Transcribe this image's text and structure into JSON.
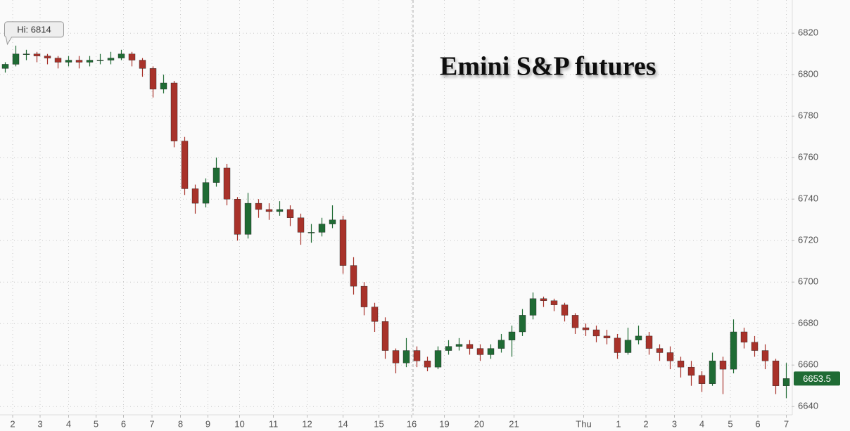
{
  "chart_data": {
    "type": "candlestick",
    "title": "Emini S&P futures",
    "annotation": "Hi: 6814",
    "last_price": 6653.5,
    "up_color": "#1f6b34",
    "down_color": "#a8322a",
    "grid": true,
    "x": [
      0,
      1,
      2,
      3,
      4,
      5,
      6,
      7,
      8,
      9,
      10,
      11,
      12,
      13,
      14,
      15,
      16,
      17,
      18,
      19,
      20,
      21,
      22,
      23,
      24,
      25,
      26,
      27,
      28,
      29,
      30,
      31,
      32,
      33,
      34,
      35,
      36,
      37,
      38,
      39,
      40,
      41,
      42,
      43,
      44,
      45,
      46,
      47,
      48,
      49,
      50,
      51,
      52,
      53,
      54,
      55,
      56,
      57,
      58,
      59,
      60,
      61,
      62,
      63,
      64,
      65,
      66,
      67,
      68,
      69,
      70,
      71,
      72,
      73,
      74
    ],
    "open": [
      6803,
      6805,
      6810,
      6810,
      6809,
      6808,
      6806,
      6807,
      6806,
      6807,
      6807,
      6808,
      6810,
      6807,
      6803,
      6793,
      6796,
      6768,
      6745,
      6738,
      6748,
      6755,
      6740,
      6723,
      6738,
      6735,
      6734,
      6735,
      6731,
      6724,
      6724,
      6728,
      6730,
      6708,
      6698,
      6688,
      6681,
      6667,
      6661,
      6667,
      6662,
      6659,
      6667,
      6669,
      6670,
      6668,
      6665,
      6668,
      6672,
      6676,
      6684,
      6692,
      6691,
      6689,
      6684,
      6678,
      6677,
      6674,
      6673,
      6666,
      6672,
      6674,
      6668,
      6666,
      6662,
      6659,
      6655,
      6651,
      6662,
      6658,
      6676,
      6671,
      6667,
      6662,
      6650
    ],
    "high": [
      6806,
      6814,
      6812,
      6811,
      6810,
      6809,
      6809,
      6809,
      6809,
      6810,
      6811,
      6812,
      6811,
      6808,
      6804,
      6800,
      6797,
      6770,
      6747,
      6750,
      6760,
      6757,
      6741,
      6743,
      6740,
      6738,
      6739,
      6737,
      6733,
      6728,
      6731,
      6737,
      6732,
      6712,
      6700,
      6690,
      6683,
      6668,
      6673,
      6669,
      6664,
      6669,
      6672,
      6673,
      6672,
      6670,
      6670,
      6675,
      6679,
      6687,
      6695,
      6693,
      6692,
      6690,
      6685,
      6680,
      6679,
      6677,
      6675,
      6678,
      6679,
      6676,
      6670,
      6669,
      6664,
      6662,
      6657,
      6666,
      6664,
      6682,
      6678,
      6674,
      6670,
      6663,
      6661
    ],
    "low": [
      6801,
      6804,
      6807,
      6806,
      6805,
      6803,
      6804,
      6803,
      6804,
      6805,
      6805,
      6807,
      6804,
      6799,
      6789,
      6791,
      6765,
      6742,
      6733,
      6736,
      6746,
      6737,
      6720,
      6721,
      6731,
      6730,
      6732,
      6727,
      6718,
      6719,
      6722,
      6726,
      6704,
      6694,
      6684,
      6676,
      6663,
      6656,
      6659,
      6659,
      6657,
      6658,
      6665,
      6667,
      6665,
      6662,
      6663,
      6666,
      6664,
      6674,
      6682,
      6688,
      6686,
      6681,
      6675,
      6674,
      6671,
      6670,
      6663,
      6665,
      6670,
      6665,
      6662,
      6658,
      6654,
      6650,
      6647,
      6650,
      6646,
      6656,
      6668,
      6664,
      6658,
      6646,
      6644
    ],
    "close": [
      6805,
      6810,
      6810,
      6809,
      6808,
      6806,
      6807,
      6806,
      6807,
      6807,
      6808,
      6810,
      6807,
      6803,
      6793,
      6796,
      6768,
      6745,
      6738,
      6748,
      6755,
      6740,
      6723,
      6738,
      6735,
      6734,
      6735,
      6731,
      6724,
      6724,
      6728,
      6730,
      6708,
      6698,
      6688,
      6681,
      6667,
      6661,
      6667,
      6662,
      6659,
      6667,
      6669,
      6670,
      6668,
      6665,
      6668,
      6672,
      6676,
      6684,
      6692,
      6691,
      6689,
      6684,
      6678,
      6677,
      6674,
      6673,
      6666,
      6672,
      6674,
      6668,
      6666,
      6662,
      6659,
      6655,
      6651,
      6662,
      6658,
      6676,
      6671,
      6667,
      6662,
      6650,
      6653.5
    ],
    "xlim": [
      -0.5,
      74.5
    ],
    "xticks": [
      {
        "value": 0.7,
        "label": "2"
      },
      {
        "value": 3.3,
        "label": "3"
      },
      {
        "value": 6.0,
        "label": "4"
      },
      {
        "value": 8.6,
        "label": "5"
      },
      {
        "value": 11.2,
        "label": "6"
      },
      {
        "value": 13.9,
        "label": "7"
      },
      {
        "value": 16.6,
        "label": "8"
      },
      {
        "value": 19.2,
        "label": "9"
      },
      {
        "value": 22.2,
        "label": "10"
      },
      {
        "value": 25.4,
        "label": "11"
      },
      {
        "value": 28.6,
        "label": "12"
      },
      {
        "value": 32.0,
        "label": "14"
      },
      {
        "value": 35.4,
        "label": "15"
      },
      {
        "value": 38.5,
        "label": "16"
      },
      {
        "value": 41.6,
        "label": "19"
      },
      {
        "value": 44.9,
        "label": "20"
      },
      {
        "value": 48.2,
        "label": "21"
      },
      {
        "value": 54.8,
        "label": "Thu"
      },
      {
        "value": 58.1,
        "label": "1"
      },
      {
        "value": 60.7,
        "label": "2"
      },
      {
        "value": 63.4,
        "label": "3"
      },
      {
        "value": 66.0,
        "label": "4"
      },
      {
        "value": 68.7,
        "label": "5"
      },
      {
        "value": 71.3,
        "label": "6"
      },
      {
        "value": 74.0,
        "label": "7"
      }
    ],
    "ylim": [
      6636,
      6836
    ],
    "yticks": [
      6640,
      6660,
      6680,
      6700,
      6720,
      6740,
      6760,
      6780,
      6800,
      6820
    ]
  }
}
